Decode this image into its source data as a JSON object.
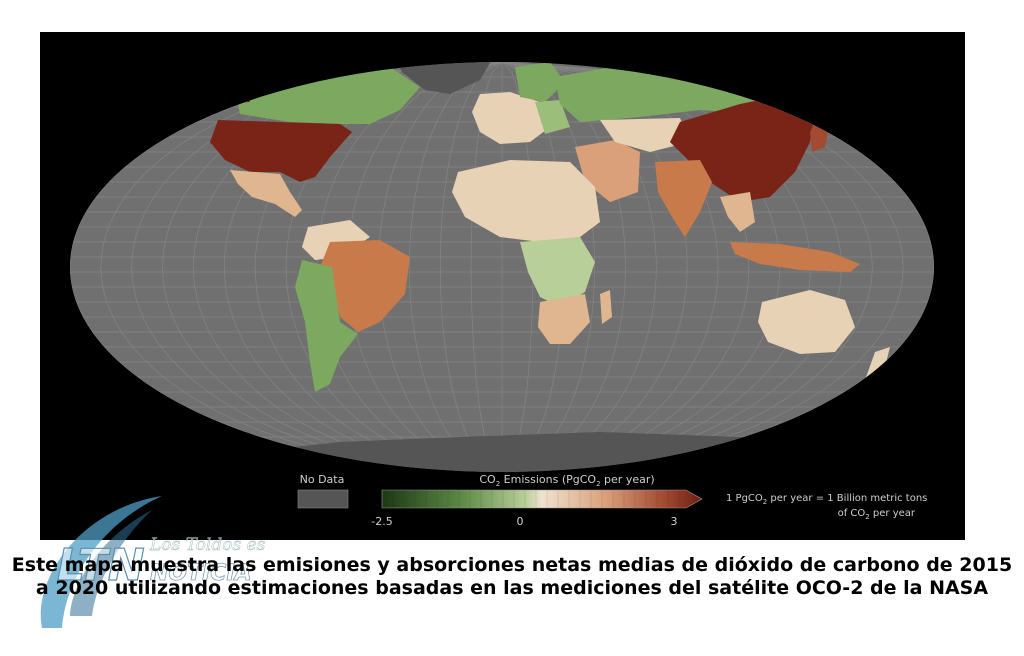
{
  "legend": {
    "no_data_label": "No Data",
    "title_prefix": "CO",
    "title_sub": "2",
    "title_main": " Emissions (PgCO",
    "title_unit_sub": "2",
    "title_tail": " per year)",
    "tick_min": "-2.5",
    "tick_zero": "0",
    "tick_max": "3",
    "note_line1_a": "1 PgCO",
    "note_line1_sub": "2",
    "note_line1_b": " per year = 1 Billion metric tons",
    "note_line2_a": "of CO",
    "note_line2_sub": "2",
    "note_line2_b": " per year",
    "scale": {
      "min": -2.5,
      "max": 3,
      "zero": 0
    }
  },
  "colors": {
    "ocean": "#6f6f6f",
    "no_data": "#555555",
    "sink_strong": "#1e3814",
    "sink": "#7da860",
    "neutral_low": "#e8d2b6",
    "emit_medium": "#c97a4a",
    "emit_strong": "#7a2418"
  },
  "logo": {
    "letters": "LTN",
    "text_top": "Los Toldos es",
    "text_bottom": "NOTICIA"
  },
  "caption": {
    "line1": "Este mapa muestra las emisiones y absorciones netas medias de dióxido de carbono de 2015",
    "line2": "a 2020 utilizando estimaciones basadas en las mediciones del satélite OCO-2 de la NASA"
  }
}
